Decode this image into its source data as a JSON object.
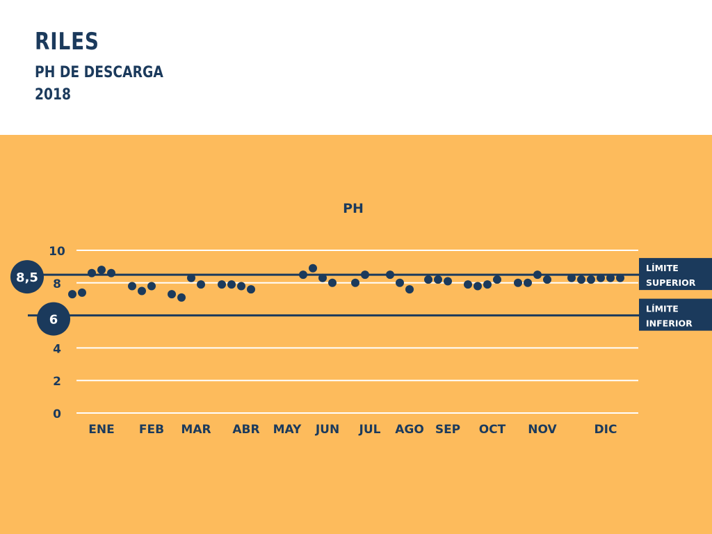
{
  "header": {
    "title": "RILES",
    "subtitle": "PH DE DESCARGA",
    "year": "2018"
  },
  "colors": {
    "background": "#fdbb5c",
    "navy": "#1b3a5c",
    "gridline": "#ffffff"
  },
  "chart_data": {
    "type": "scatter",
    "title": "PH",
    "ylim": [
      0,
      10
    ],
    "y_ticks": [
      "0",
      "2",
      "4",
      "6",
      "8",
      "10"
    ],
    "y_tick_values": [
      0,
      2,
      4,
      6,
      8,
      10
    ],
    "grid": true,
    "categories": [
      "ENE",
      "FEB",
      "MAR",
      "ABR",
      "MAY",
      "JUN",
      "JUL",
      "AGO",
      "SEP",
      "OCT",
      "NOV",
      "DIC"
    ],
    "series": [
      {
        "points": [
          {
            "month": "ENE",
            "values": [
              7.3,
              7.4,
              8.6,
              8.8,
              8.6
            ]
          },
          {
            "month": "FEB",
            "values": [
              7.8,
              7.5,
              7.8
            ]
          },
          {
            "month": "MAR",
            "values": [
              7.3,
              7.1,
              8.3,
              7.9
            ]
          },
          {
            "month": "ABR",
            "values": [
              7.9,
              7.9,
              7.8,
              7.6
            ]
          },
          {
            "month": "MAY",
            "values": []
          },
          {
            "month": "JUN",
            "values": [
              8.5,
              8.9,
              8.3,
              8.0
            ]
          },
          {
            "month": "JUL",
            "values": [
              8.0,
              8.5
            ]
          },
          {
            "month": "AGO",
            "values": [
              8.5,
              8.0,
              7.6
            ]
          },
          {
            "month": "SEP",
            "values": [
              8.2,
              8.2,
              8.1
            ]
          },
          {
            "month": "OCT",
            "values": [
              7.9,
              7.8,
              7.9,
              8.2
            ]
          },
          {
            "month": "NOV",
            "values": [
              8.0,
              8.0,
              8.5,
              8.2
            ]
          },
          {
            "month": "DIC",
            "values": [
              8.3,
              8.2,
              8.2,
              8.3,
              8.3,
              8.3
            ]
          }
        ]
      }
    ],
    "limits": [
      {
        "value": 8.5,
        "badge": "8,5",
        "label_line1": "LÍMITE",
        "label_line2": "SUPERIOR"
      },
      {
        "value": 6,
        "badge": "6",
        "label_line1": "LÍMITE",
        "label_line2": "INFERIOR"
      }
    ]
  }
}
